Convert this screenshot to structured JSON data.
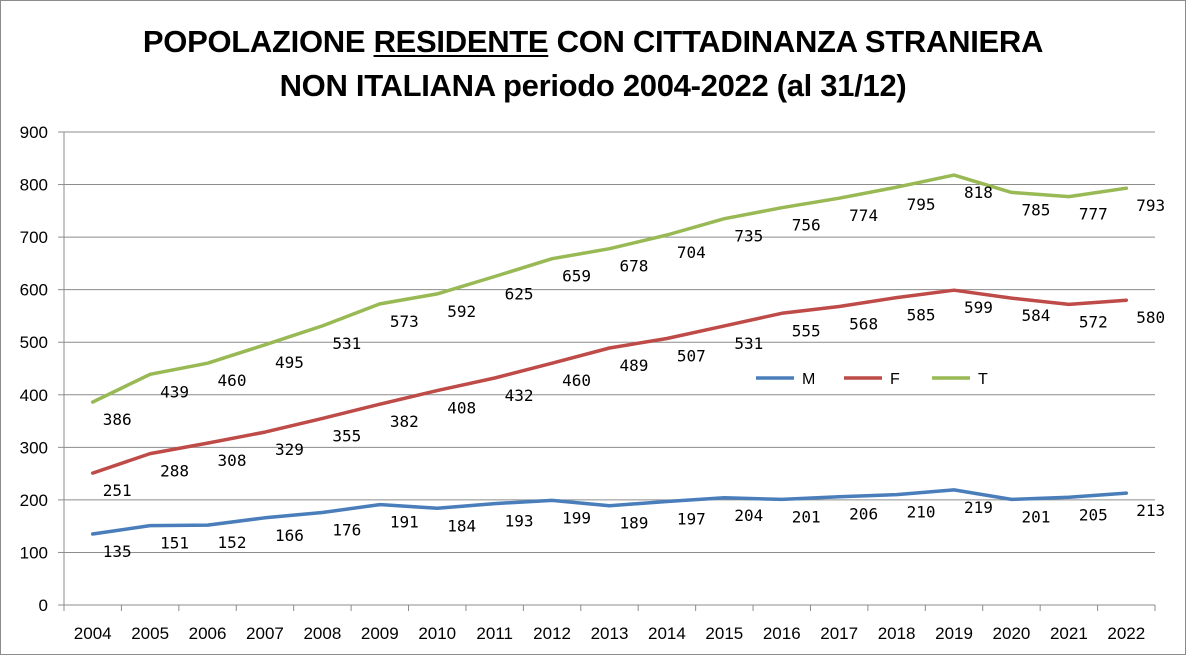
{
  "chart_data": {
    "type": "line",
    "title_line1_pre": "POPOLAZIONE ",
    "title_line1_underlined": "RESIDENTE",
    "title_line1_post": " CON CITTADINANZA STRANIERA",
    "title_line2": "NON ITALIANA periodo 2004-2022 (al 31/12)",
    "categories": [
      "2004",
      "2005",
      "2006",
      "2007",
      "2008",
      "2009",
      "2010",
      "2011",
      "2012",
      "2013",
      "2014",
      "2015",
      "2016",
      "2017",
      "2018",
      "2019",
      "2020",
      "2021",
      "2022"
    ],
    "series": [
      {
        "name": "M",
        "color": "#4a7ebb",
        "values": [
          135,
          151,
          152,
          166,
          176,
          191,
          184,
          193,
          199,
          189,
          197,
          204,
          201,
          206,
          210,
          219,
          201,
          205,
          213
        ]
      },
      {
        "name": "F",
        "color": "#be4b48",
        "values": [
          251,
          288,
          308,
          329,
          355,
          382,
          408,
          432,
          460,
          489,
          507,
          531,
          555,
          568,
          585,
          599,
          584,
          572,
          580
        ]
      },
      {
        "name": "T",
        "color": "#98b954",
        "values": [
          386,
          439,
          460,
          495,
          531,
          573,
          592,
          625,
          659,
          678,
          704,
          735,
          756,
          774,
          795,
          818,
          785,
          777,
          793
        ]
      }
    ],
    "ylim": [
      0,
      900
    ],
    "yticks": [
      0,
      100,
      200,
      300,
      400,
      500,
      600,
      700,
      800,
      900
    ],
    "grid": true,
    "legend_position": "center-right",
    "xlabel": "",
    "ylabel": ""
  }
}
